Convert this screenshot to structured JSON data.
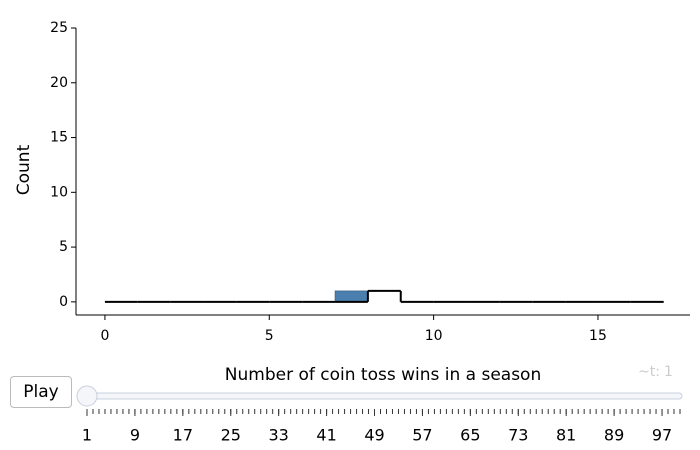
{
  "chart_data": {
    "type": "histogram",
    "ylabel": "Count",
    "xlabel": "Number of coin toss wins in a season",
    "xlim": [
      -0.88,
      17.8
    ],
    "ylim": [
      -1.2,
      25
    ],
    "xticks": [
      0,
      5,
      10,
      15
    ],
    "yticks": [
      0,
      5,
      10,
      15,
      20,
      25
    ],
    "bins": [
      7,
      8
    ],
    "values": [
      1
    ],
    "color": "#4a7fb0",
    "step": {
      "bins": [
        0,
        1,
        2,
        3,
        4,
        5,
        6,
        7,
        8,
        9,
        10,
        11,
        12,
        13,
        14,
        15,
        16,
        17
      ],
      "values": [
        0,
        0,
        0,
        0,
        0,
        0,
        0,
        0,
        1,
        0,
        0,
        0,
        0,
        0,
        0,
        0,
        0
      ],
      "color": "#000000"
    }
  },
  "controls": {
    "play": "Play",
    "slider": {
      "prefix": "~t:",
      "value": 1,
      "steps": [
        1,
        2,
        3,
        4,
        5,
        6,
        7,
        8,
        9,
        10,
        11,
        12,
        13,
        14,
        15,
        16,
        17,
        18,
        19,
        20,
        21,
        22,
        23,
        24,
        25,
        26,
        27,
        28,
        29,
        30,
        31,
        32,
        33,
        34,
        35,
        36,
        37,
        38,
        39,
        40,
        41,
        42,
        43,
        44,
        45,
        46,
        47,
        48,
        49,
        50,
        51,
        52,
        53,
        54,
        55,
        56,
        57,
        58,
        59,
        60,
        61,
        62,
        63,
        64,
        65,
        66,
        67,
        68,
        69,
        70,
        71,
        72,
        73,
        74,
        75,
        76,
        77,
        78,
        79,
        80,
        81,
        82,
        83,
        84,
        85,
        86,
        87,
        88,
        89,
        90,
        91,
        92,
        93,
        94,
        95,
        96,
        97,
        98,
        99,
        100
      ],
      "labels": [
        1,
        9,
        17,
        25,
        33,
        41,
        49,
        57,
        65,
        73,
        81,
        89,
        97
      ]
    }
  }
}
